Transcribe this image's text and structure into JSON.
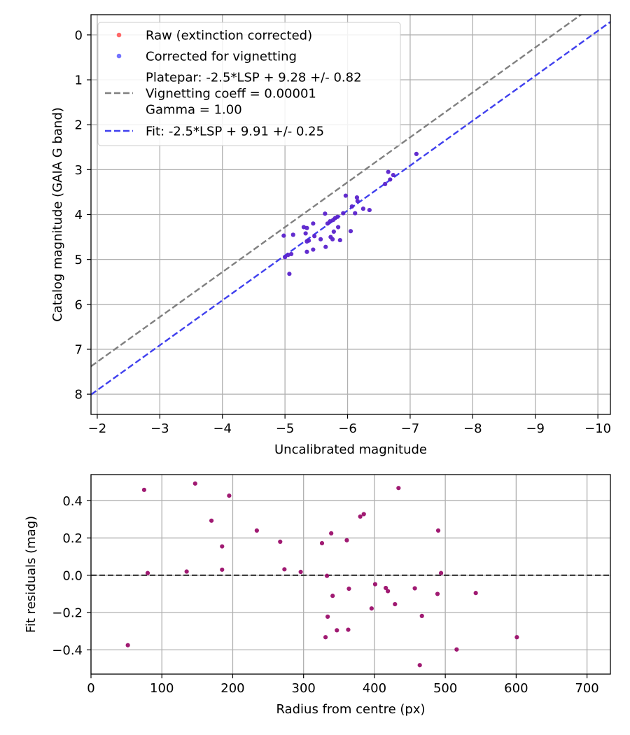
{
  "chart_data": [
    {
      "type": "scatter",
      "xlabel": "Uncalibrated magnitude",
      "ylabel": "Catalog magnitude (GAIA G band)",
      "xlim": [
        -1.9,
        -10.2
      ],
      "ylim": [
        8.45,
        -0.45
      ],
      "x_inverted": true,
      "y_inverted": true,
      "xticks": [
        -2,
        -3,
        -4,
        -5,
        -6,
        -7,
        -8,
        -9,
        -10
      ],
      "xtick_labels": [
        "−2",
        "−3",
        "−4",
        "−5",
        "−6",
        "−7",
        "−8",
        "−9",
        "−10"
      ],
      "yticks": [
        0,
        1,
        2,
        3,
        4,
        5,
        6,
        7,
        8
      ],
      "ytick_labels": [
        "0",
        "1",
        "2",
        "3",
        "4",
        "5",
        "6",
        "7",
        "8"
      ],
      "grid": true,
      "legend_position": "top-left",
      "legend": [
        {
          "label": "Raw (extinction corrected)",
          "kind": "marker",
          "color": "#ff4d4d"
        },
        {
          "label": "Corrected for vignetting",
          "kind": "marker",
          "color": "#5a5aff"
        },
        {
          "label": "Platepar: -2.5*LSP + 9.28 +/- 0.82",
          "kind": "none"
        },
        {
          "label": "Vignetting coeff = 0.00001",
          "kind": "line",
          "color": "#808080"
        },
        {
          "label": "Gamma = 1.00",
          "kind": "none"
        },
        {
          "label": "Fit: -2.5*LSP + 9.91 +/- 0.25",
          "kind": "line",
          "color": "#4040ee"
        }
      ],
      "lines": [
        {
          "name": "Platepar",
          "slope": 1.0,
          "intercept": 9.28,
          "color": "#808080",
          "dash": true
        },
        {
          "name": "Fit",
          "slope": 1.0,
          "intercept": 9.91,
          "color": "#4040ee",
          "dash": true
        }
      ],
      "series": [
        {
          "name": "Corrected for vignetting",
          "color": "#5a22cc",
          "points": [
            [
              -7.1,
              2.65
            ],
            [
              -6.65,
              3.05
            ],
            [
              -6.73,
              3.12
            ],
            [
              -6.68,
              3.22
            ],
            [
              -6.6,
              3.32
            ],
            [
              -6.15,
              3.62
            ],
            [
              -6.16,
              3.7
            ],
            [
              -5.97,
              3.58
            ],
            [
              -6.07,
              3.82
            ],
            [
              -6.25,
              3.87
            ],
            [
              -6.35,
              3.9
            ],
            [
              -6.12,
              3.97
            ],
            [
              -5.93,
              3.97
            ],
            [
              -5.84,
              4.05
            ],
            [
              -5.8,
              4.08
            ],
            [
              -5.77,
              4.12
            ],
            [
              -5.72,
              4.15
            ],
            [
              -5.68,
              4.2
            ],
            [
              -5.64,
              3.98
            ],
            [
              -5.45,
              4.2
            ],
            [
              -5.85,
              4.28
            ],
            [
              -5.3,
              4.28
            ],
            [
              -5.35,
              4.3
            ],
            [
              -5.78,
              4.38
            ],
            [
              -6.05,
              4.37
            ],
            [
              -5.33,
              4.42
            ],
            [
              -4.98,
              4.47
            ],
            [
              -5.13,
              4.45
            ],
            [
              -5.73,
              4.5
            ],
            [
              -5.47,
              4.48
            ],
            [
              -5.57,
              4.55
            ],
            [
              -5.88,
              4.57
            ],
            [
              -5.76,
              4.55
            ],
            [
              -5.38,
              4.58
            ],
            [
              -5.35,
              4.6
            ],
            [
              -5.65,
              4.72
            ],
            [
              -5.45,
              4.78
            ],
            [
              -5.35,
              4.83
            ],
            [
              -5.1,
              4.88
            ],
            [
              -5.05,
              4.9
            ],
            [
              -5.0,
              4.95
            ],
            [
              -5.07,
              5.32
            ]
          ]
        }
      ]
    },
    {
      "type": "scatter",
      "xlabel": "Radius from centre (px)",
      "ylabel": "Fit residuals (mag)",
      "xlim": [
        0,
        733
      ],
      "ylim": [
        -0.53,
        0.54
      ],
      "xticks": [
        0,
        100,
        200,
        300,
        400,
        500,
        600,
        700
      ],
      "xtick_labels": [
        "0",
        "100",
        "200",
        "300",
        "400",
        "500",
        "600",
        "700"
      ],
      "yticks": [
        -0.4,
        -0.2,
        0.0,
        0.2,
        0.4
      ],
      "ytick_labels": [
        "−0.4",
        "−0.2",
        "0.0",
        "0.2",
        "0.4"
      ],
      "grid": true,
      "reference_line": {
        "y": 0.0,
        "color": "#333333",
        "dash": true
      },
      "series": [
        {
          "color": "#9b0e6a",
          "points": [
            [
              52,
              -0.375
            ],
            [
              75,
              0.458
            ],
            [
              80,
              0.012
            ],
            [
              135,
              0.02
            ],
            [
              147,
              0.492
            ],
            [
              170,
              0.293
            ],
            [
              185,
              0.155
            ],
            [
              185,
              0.03
            ],
            [
              195,
              0.427
            ],
            [
              234,
              0.24
            ],
            [
              267,
              0.18
            ],
            [
              273,
              0.032
            ],
            [
              296,
              0.018
            ],
            [
              326,
              0.172
            ],
            [
              331,
              -0.332
            ],
            [
              333,
              -0.003
            ],
            [
              334,
              -0.222
            ],
            [
              339,
              0.225
            ],
            [
              341,
              -0.11
            ],
            [
              347,
              -0.295
            ],
            [
              361,
              0.188
            ],
            [
              363,
              -0.292
            ],
            [
              364,
              -0.072
            ],
            [
              380,
              0.315
            ],
            [
              385,
              0.328
            ],
            [
              396,
              -0.178
            ],
            [
              401,
              -0.048
            ],
            [
              416,
              -0.068
            ],
            [
              419,
              -0.085
            ],
            [
              429,
              -0.155
            ],
            [
              434,
              0.468
            ],
            [
              457,
              -0.07
            ],
            [
              464,
              -0.482
            ],
            [
              467,
              -0.218
            ],
            [
              489,
              -0.1
            ],
            [
              490,
              0.24
            ],
            [
              494,
              0.012
            ],
            [
              516,
              -0.398
            ],
            [
              543,
              -0.095
            ],
            [
              601,
              -0.332
            ]
          ]
        }
      ]
    }
  ]
}
